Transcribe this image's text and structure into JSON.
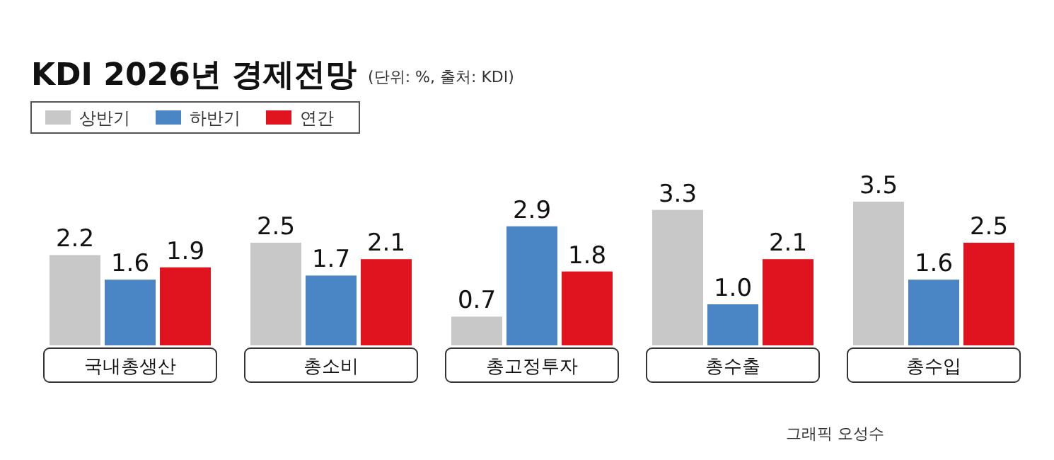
{
  "chart_data": {
    "type": "bar",
    "title": "KDI 2026년 경제전망",
    "subtitle": "(단위: %, 출처: KDI)",
    "categories": [
      "국내총생산",
      "총소비",
      "총고정투자",
      "총수출",
      "총수입"
    ],
    "series": [
      {
        "name": "상반기",
        "color": "#c8c8c8",
        "values": [
          2.2,
          2.5,
          0.7,
          3.3,
          3.5
        ]
      },
      {
        "name": "하반기",
        "color": "#4a86c5",
        "values": [
          1.6,
          1.7,
          2.9,
          1.0,
          1.6
        ],
        "value_labels": [
          "1.6",
          "1.7",
          "2.9",
          "1.0",
          "1.6"
        ]
      },
      {
        "name": "연간",
        "color": "#e0141e",
        "values": [
          1.9,
          2.1,
          1.8,
          2.1,
          2.5
        ]
      }
    ],
    "data_labels": true,
    "legend": "top left",
    "annotations": [
      "그래픽 오성수"
    ]
  }
}
